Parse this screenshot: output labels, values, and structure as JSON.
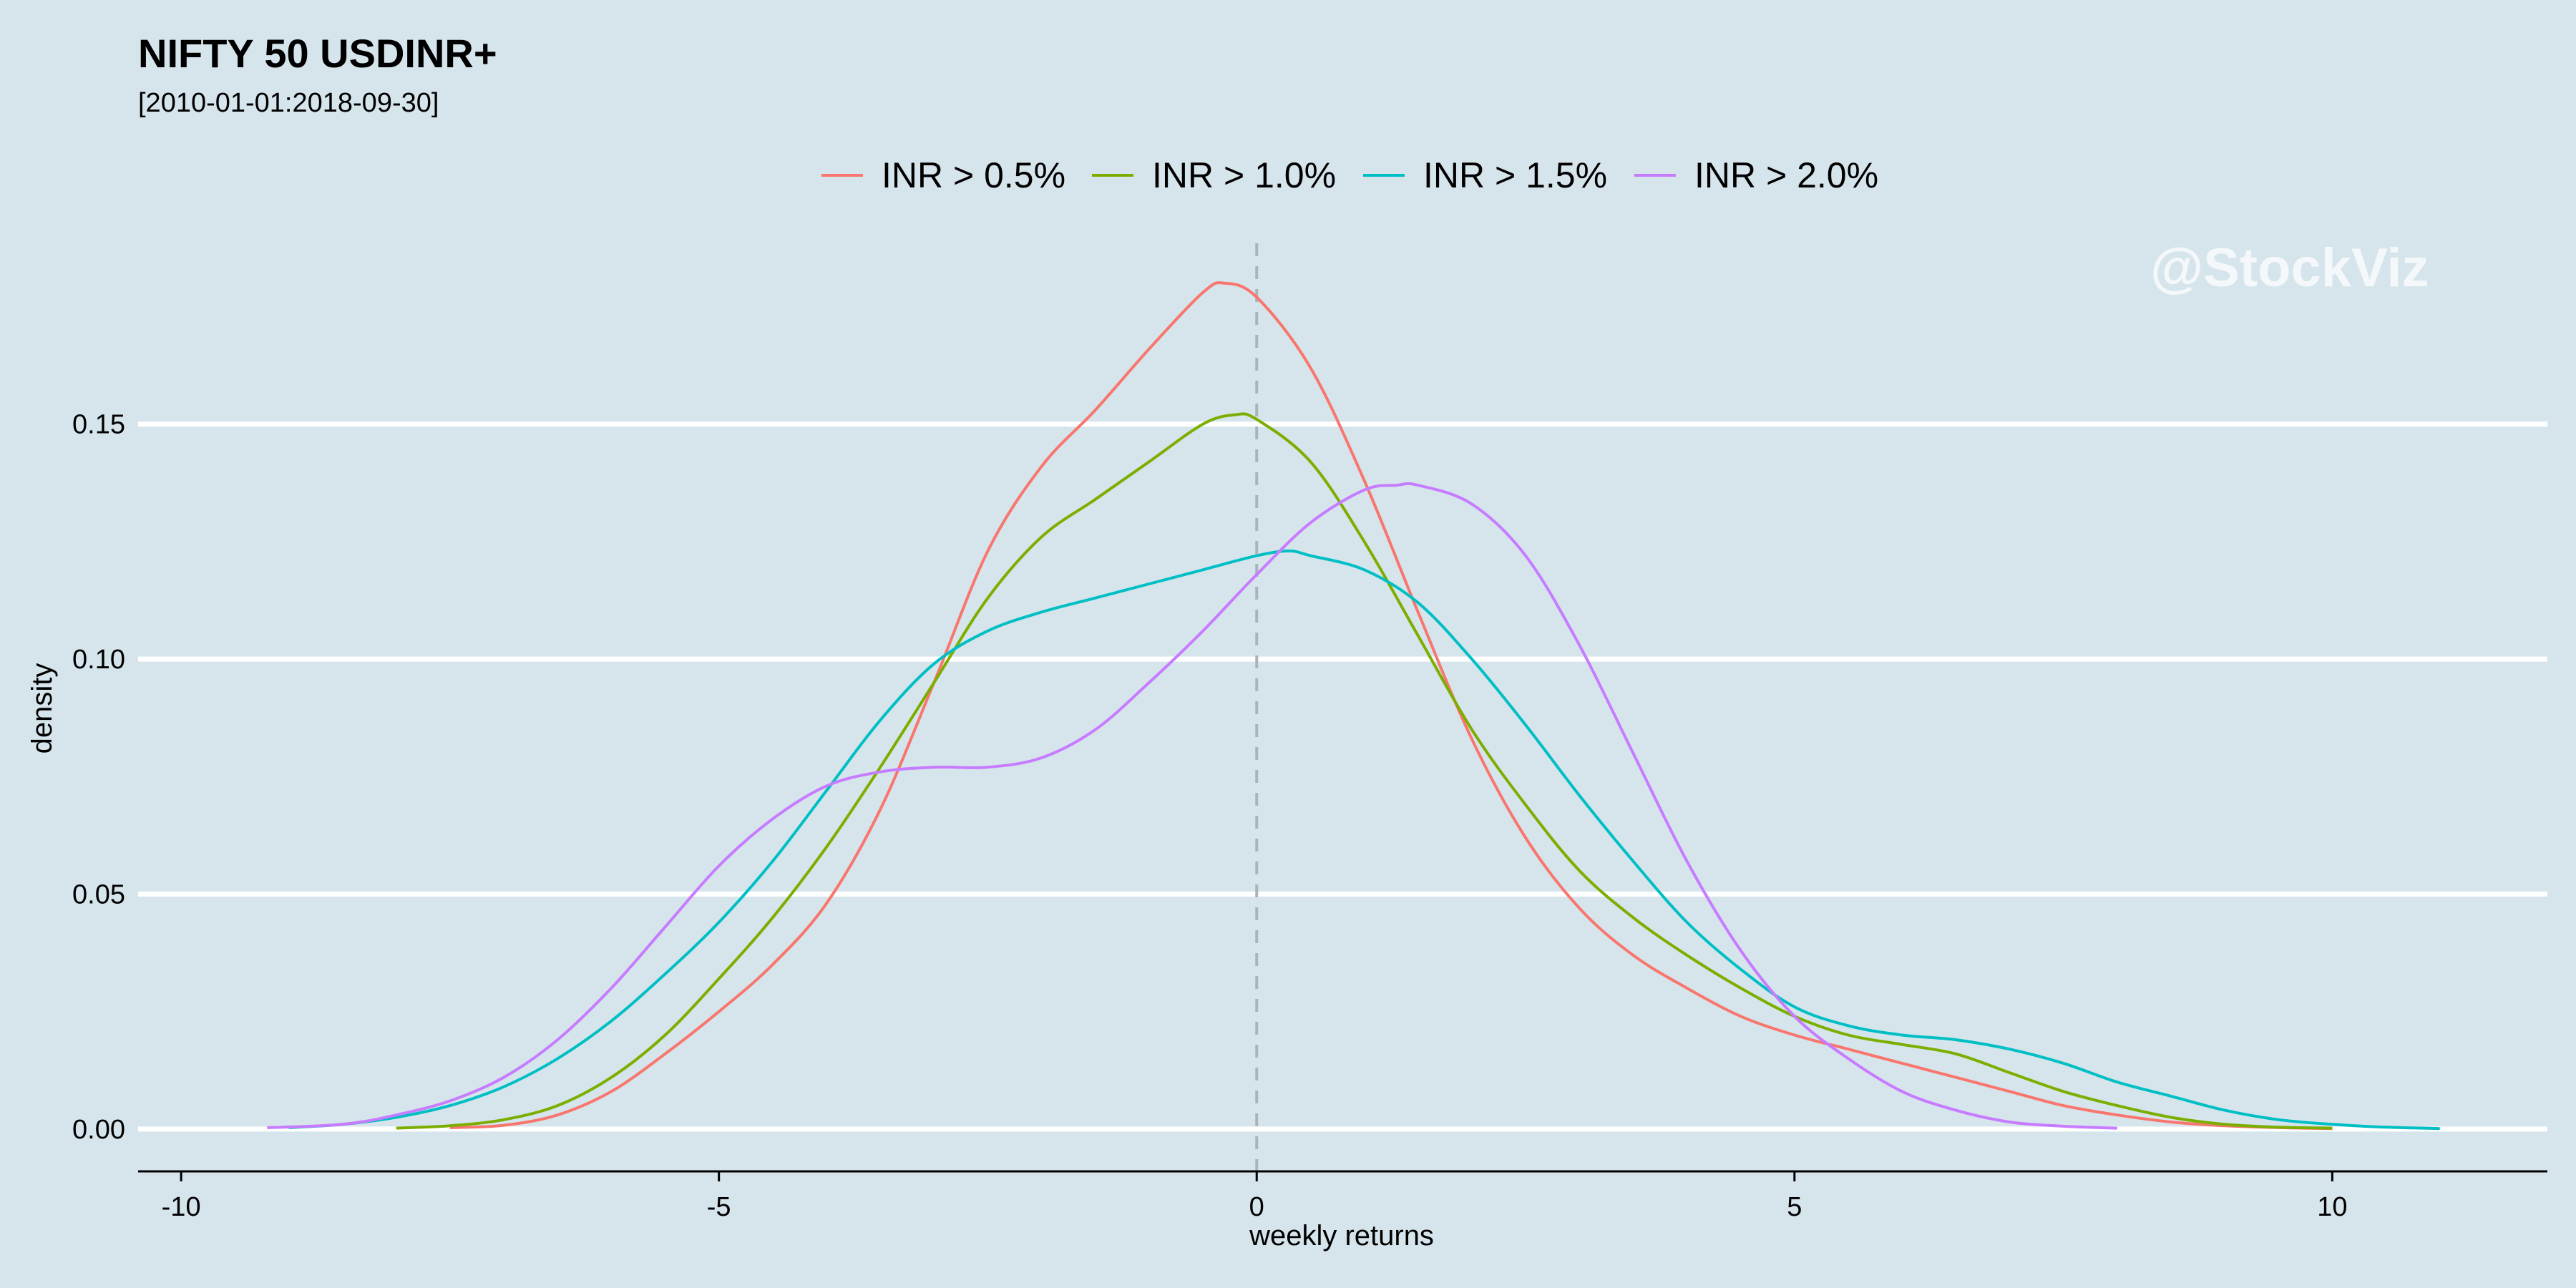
{
  "chart_data": {
    "type": "line",
    "title": "NIFTY 50 USDINR+",
    "subtitle": "[2010-01-01:2018-09-30]",
    "xlabel": "weekly returns",
    "ylabel": "density",
    "xlim": [
      -10.4,
      12.0
    ],
    "ylim": [
      -0.009,
      0.19
    ],
    "x_ticks": [
      -10,
      -5,
      0,
      5,
      10
    ],
    "x_tick_labels": [
      "-10",
      "-5",
      "0",
      "5",
      "10"
    ],
    "y_ticks": [
      0.0,
      0.05,
      0.1,
      0.15
    ],
    "y_tick_labels": [
      "0.00",
      "0.05",
      "0.10",
      "0.15"
    ],
    "grid": "horizontal",
    "legend_position": "top",
    "vline": {
      "x": 0,
      "style": "dashed"
    },
    "watermark": "@StockViz",
    "colors": {
      "background": "#d6e5ec",
      "grid": "#ffffff",
      "vline": "#a9b4b9"
    },
    "series": [
      {
        "name": "INR > 0.5%",
        "color": "#f8766d",
        "x": [
          -7.5,
          -7.0,
          -6.5,
          -6.0,
          -5.5,
          -5.0,
          -4.5,
          -4.0,
          -3.5,
          -3.0,
          -2.5,
          -2.0,
          -1.5,
          -1.0,
          -0.5,
          -0.3,
          0.0,
          0.5,
          1.0,
          1.5,
          2.0,
          2.5,
          3.0,
          3.5,
          4.0,
          4.5,
          5.0,
          5.5,
          6.0,
          6.5,
          7.0,
          7.5,
          8.0,
          8.5,
          9.0,
          9.5,
          10.0
        ],
        "y": [
          0.0003,
          0.0008,
          0.003,
          0.008,
          0.016,
          0.025,
          0.035,
          0.048,
          0.068,
          0.095,
          0.123,
          0.141,
          0.153,
          0.166,
          0.178,
          0.18,
          0.177,
          0.162,
          0.138,
          0.11,
          0.083,
          0.062,
          0.047,
          0.037,
          0.03,
          0.024,
          0.02,
          0.017,
          0.014,
          0.011,
          0.008,
          0.005,
          0.003,
          0.0015,
          0.0007,
          0.0003,
          0.0001
        ]
      },
      {
        "name": "INR > 1.0%",
        "color": "#7cae00",
        "x": [
          -8.0,
          -7.5,
          -7.0,
          -6.5,
          -6.0,
          -5.5,
          -5.0,
          -4.5,
          -4.0,
          -3.5,
          -3.0,
          -2.5,
          -2.0,
          -1.5,
          -1.0,
          -0.5,
          -0.2,
          0.0,
          0.5,
          1.0,
          1.5,
          2.0,
          2.5,
          3.0,
          3.5,
          4.0,
          4.5,
          5.0,
          5.5,
          6.0,
          6.5,
          7.0,
          7.5,
          8.0,
          8.5,
          9.0,
          9.5,
          10.0
        ],
        "y": [
          0.0002,
          0.0007,
          0.002,
          0.005,
          0.011,
          0.02,
          0.032,
          0.045,
          0.06,
          0.077,
          0.095,
          0.113,
          0.126,
          0.134,
          0.142,
          0.15,
          0.152,
          0.151,
          0.142,
          0.125,
          0.105,
          0.085,
          0.069,
          0.055,
          0.045,
          0.037,
          0.03,
          0.024,
          0.02,
          0.018,
          0.016,
          0.012,
          0.008,
          0.005,
          0.0025,
          0.001,
          0.0004,
          0.0002
        ]
      },
      {
        "name": "INR > 1.5%",
        "color": "#00bfc4",
        "x": [
          -9.0,
          -8.5,
          -8.0,
          -7.5,
          -7.0,
          -6.5,
          -6.0,
          -5.5,
          -5.0,
          -4.5,
          -4.0,
          -3.5,
          -3.0,
          -2.5,
          -2.0,
          -1.5,
          -1.0,
          -0.5,
          0.0,
          0.3,
          0.5,
          1.0,
          1.5,
          2.0,
          2.5,
          3.0,
          3.5,
          4.0,
          4.5,
          5.0,
          5.5,
          6.0,
          6.5,
          7.0,
          7.5,
          8.0,
          8.5,
          9.0,
          9.5,
          10.0,
          10.5,
          11.0
        ],
        "y": [
          0.0003,
          0.001,
          0.0025,
          0.005,
          0.009,
          0.015,
          0.023,
          0.033,
          0.044,
          0.057,
          0.072,
          0.087,
          0.099,
          0.106,
          0.11,
          0.113,
          0.116,
          0.119,
          0.122,
          0.123,
          0.122,
          0.119,
          0.112,
          0.1,
          0.086,
          0.071,
          0.057,
          0.044,
          0.034,
          0.026,
          0.022,
          0.02,
          0.019,
          0.017,
          0.014,
          0.01,
          0.007,
          0.004,
          0.002,
          0.001,
          0.0004,
          0.0001
        ]
      },
      {
        "name": "INR > 2.0%",
        "color": "#c77cff",
        "x": [
          -9.2,
          -8.5,
          -8.0,
          -7.5,
          -7.0,
          -6.5,
          -6.0,
          -5.5,
          -5.0,
          -4.5,
          -4.0,
          -3.5,
          -3.0,
          -2.5,
          -2.0,
          -1.5,
          -1.0,
          -0.5,
          0.0,
          0.5,
          1.0,
          1.3,
          1.5,
          2.0,
          2.5,
          3.0,
          3.5,
          4.0,
          4.5,
          5.0,
          5.5,
          6.0,
          6.5,
          7.0,
          7.5,
          8.0
        ],
        "y": [
          0.0003,
          0.001,
          0.003,
          0.006,
          0.011,
          0.019,
          0.03,
          0.043,
          0.056,
          0.066,
          0.073,
          0.076,
          0.077,
          0.077,
          0.079,
          0.085,
          0.095,
          0.106,
          0.118,
          0.129,
          0.136,
          0.137,
          0.137,
          0.133,
          0.122,
          0.103,
          0.08,
          0.057,
          0.038,
          0.024,
          0.015,
          0.008,
          0.004,
          0.0015,
          0.0006,
          0.0002
        ]
      }
    ]
  }
}
